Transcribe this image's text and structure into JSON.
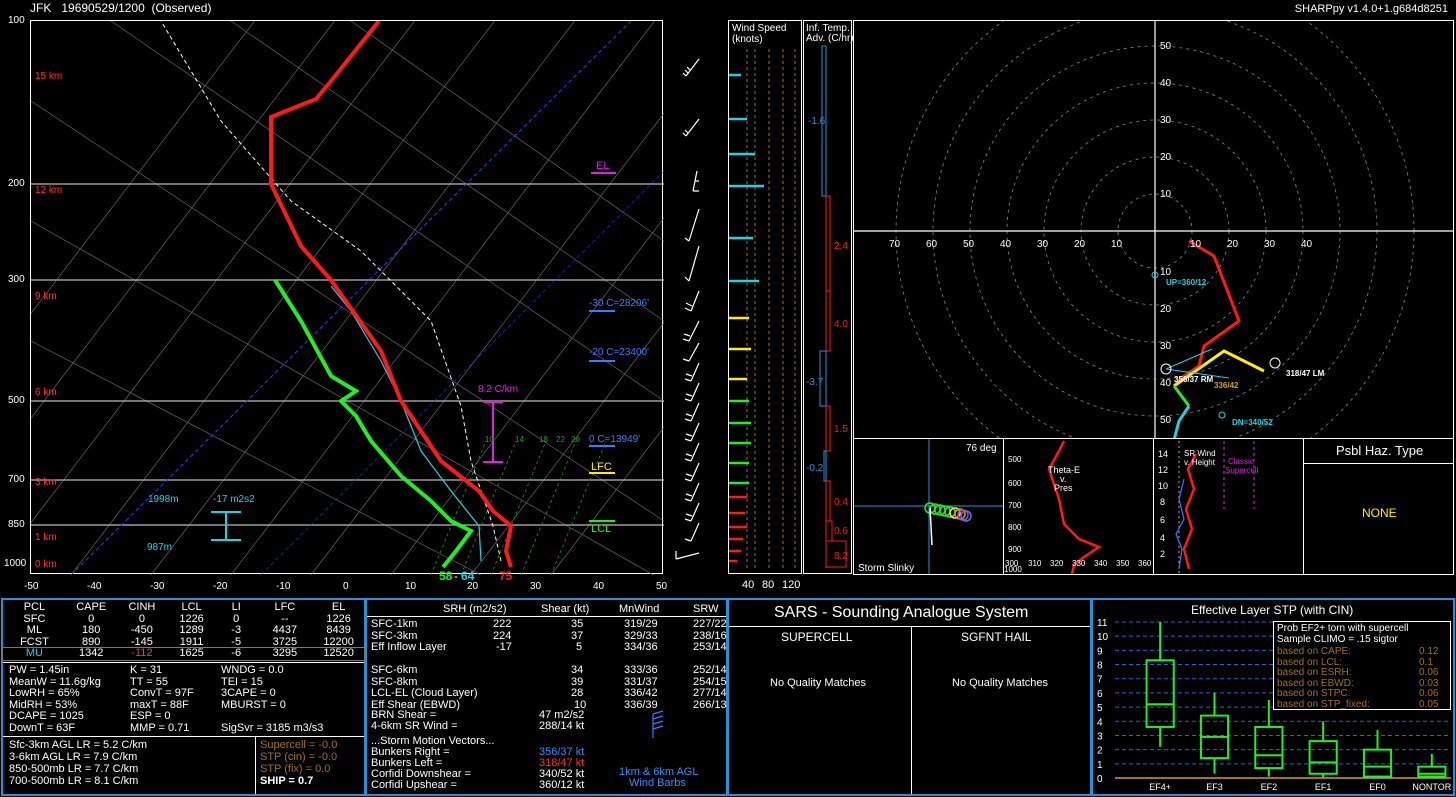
{
  "header": {
    "station": "JFK",
    "datetime": "19690529/1200",
    "status": "(Observed)",
    "version": "SHARPpy v1.4.0+1.g684d8251"
  },
  "skewt": {
    "pressure_labels": [
      "100",
      "200",
      "300",
      "500",
      "700",
      "850",
      "1000"
    ],
    "height_labels": [
      "15 km",
      "12 km",
      "9 km",
      "6 km",
      "3 km",
      "1 km",
      "0 km"
    ],
    "temp_labels": [
      "-50",
      "-40",
      "-30",
      "-20",
      "-10",
      "0",
      "10",
      "20",
      "30",
      "40",
      "50"
    ],
    "el_label": "EL",
    "lfc_label": "LFC",
    "lcl_label": "LCL",
    "isotherm_labels": [
      "-30 C=28206'",
      "-20 C=23400'",
      "0 C=13949'"
    ],
    "lapse_label": "8.2 C/km",
    "srh_top": "1998m",
    "srh_value": "-17 m2s2",
    "srh_bottom": "987m",
    "mixing_ratio_labels": [
      "10",
      "14",
      "18",
      "22",
      "26"
    ],
    "surface_dewpoint": "58",
    "surface_wetbulb": "64",
    "surface_temp": "75"
  },
  "wind_speed_panel": {
    "title": "Wind Speed",
    "units": "(knots)",
    "axis_labels": [
      "40",
      "80",
      "120"
    ]
  },
  "temp_adv_panel": {
    "title": "Inf. Temp.",
    "subtitle": "Adv. (C/hr)",
    "values": [
      "-1.6",
      "2.4",
      "4.0",
      "-3.7",
      "1.5",
      "-0.2",
      "0.4",
      "0.6",
      "8.2"
    ]
  },
  "hodograph": {
    "ring_labels_top": [
      "50",
      "40",
      "30",
      "20",
      "10"
    ],
    "ring_labels_left": [
      "70",
      "60",
      "50",
      "40",
      "30",
      "20",
      "10"
    ],
    "ring_labels_right": [
      "10",
      "20",
      "30",
      "40"
    ],
    "ring_labels_bottom": [
      "10",
      "20",
      "30",
      "40",
      "50"
    ],
    "upshear": "UP=360/12",
    "downshear": "DN=340/52",
    "rm": "356/37 RM",
    "lm": "318/47 LM",
    "mean": "336/42"
  },
  "storm_slinky": {
    "label": "Storm Slinky",
    "deg": "76 deg"
  },
  "theta_e": {
    "title_line1": "Theta-E",
    "title_line2": "v.",
    "title_line3": "Pres",
    "p_labels": [
      "500",
      "600",
      "700",
      "800",
      "900",
      "1000"
    ],
    "t_labels": [
      "300",
      "310",
      "320",
      "330",
      "340",
      "350",
      "360"
    ]
  },
  "srwind": {
    "title_line1": "SR Wind",
    "title_line2": "v. Height",
    "classic": "Classic",
    "supercell": "Supercell",
    "h_labels": [
      "14",
      "12",
      "10",
      "8",
      "6",
      "4",
      "2"
    ]
  },
  "hazard": {
    "title": "Psbl Haz. Type",
    "value": "NONE"
  },
  "parcels": {
    "headers": [
      "PCL",
      "CAPE",
      "CINH",
      "LCL",
      "LI",
      "LFC",
      "EL"
    ],
    "rows": [
      [
        "SFC",
        "0",
        "0",
        "1226",
        "0",
        "--",
        "1226"
      ],
      [
        "ML",
        "180",
        "-450",
        "1289",
        "-3",
        "4437",
        "8439"
      ],
      [
        "FCST",
        "890",
        "-145",
        "1911",
        "-5",
        "3725",
        "12200"
      ],
      [
        "MU",
        "1342",
        "-112",
        "1625",
        "-6",
        "3295",
        "12520"
      ]
    ]
  },
  "indices": {
    "col1": [
      "PW = 1.45in",
      "MeanW = 11.6g/kg",
      "LowRH = 65%",
      "MidRH = 53%",
      "DCAPE = 1025",
      "DownT = 63F"
    ],
    "col2": [
      "K = 31",
      "TT = 55",
      "ConvT = 97F",
      "maxT = 88F",
      "ESP = 0",
      "MMP = 0.71"
    ],
    "col3": [
      "WNDG = 0.0",
      "TEI = 15",
      "3CAPE = 0",
      "MBURST = 0",
      "",
      "SigSvr = 3185 m3/s3"
    ]
  },
  "lapse_rates": [
    "Sfc-3km AGL LR = 5.2 C/km",
    "3-6km AGL LR = 7.9 C/km",
    "850-500mb LR = 7.7 C/km",
    "700-500mb LR = 8.1 C/km"
  ],
  "composites": [
    "Supercell = -0.0",
    "STP (cin) = -0.0",
    "STP (fix) = 0.0",
    "SHIP = 0.7"
  ],
  "kinematics": {
    "headers": [
      "SRH (m2/s2)",
      "Shear (kt)",
      "MnWind",
      "SRW"
    ],
    "rows": [
      [
        "SFC-1km",
        "222",
        "35",
        "319/29",
        "227/22"
      ],
      [
        "SFC-3km",
        "224",
        "37",
        "329/33",
        "238/16"
      ],
      [
        "Eff Inflow Layer",
        "-17",
        "5",
        "334/36",
        "253/14"
      ],
      [
        "",
        "",
        "",
        "",
        ""
      ],
      [
        "SFC-6km",
        "",
        "34",
        "333/36",
        "252/14"
      ],
      [
        "SFC-8km",
        "",
        "39",
        "331/37",
        "254/15"
      ],
      [
        "LCL-EL (Cloud Layer)",
        "",
        "28",
        "336/42",
        "277/14"
      ],
      [
        "Eff Shear (EBWD)",
        "",
        "10",
        "336/39",
        "266/13"
      ]
    ],
    "brn_label": "BRN Shear =",
    "brn_value": "47 m2/s2",
    "sr46_label": "4-6km SR Wind =",
    "sr46_value": "288/14 kt",
    "storm_motion_title": "...Storm Motion Vectors...",
    "bunkers_right_label": "Bunkers Right =",
    "bunkers_right_value": "356/37 kt",
    "bunkers_left_label": "Bunkers Left =",
    "bunkers_left_value": "318/47 kt",
    "corfidi_down_label": "Corfidi Downshear =",
    "corfidi_down_value": "340/52 kt",
    "corfidi_up_label": "Corfidi Upshear =",
    "corfidi_up_value": "360/12 kt",
    "barbs_line1": "1km & 6km AGL",
    "barbs_line2": "Wind Barbs"
  },
  "sars": {
    "title": "SARS - Sounding Analogue System",
    "supercell_title": "SUPERCELL",
    "hail_title": "SGFNT HAIL",
    "supercell_result": "No Quality Matches",
    "hail_result": "No Quality Matches"
  },
  "stp": {
    "title": "Effective Layer STP (with CIN)",
    "legend_title1": "Prob EF2+ torn with supercell",
    "legend_title2": "Sample CLIMO = .15 sigtor",
    "legend_rows": [
      [
        "based on CAPE:",
        "0.12"
      ],
      [
        "based on LCL:",
        "0.1"
      ],
      [
        "based on ESRH:",
        "0.06"
      ],
      [
        "based on EBWD:",
        "0.03"
      ],
      [
        "based on STPC:",
        "0.06"
      ],
      [
        "based on STP_fixed:",
        "0.05"
      ]
    ],
    "y_labels": [
      "11",
      "10",
      "9",
      "8",
      "7",
      "6",
      "5",
      "4",
      "3",
      "2",
      "1",
      "0"
    ],
    "categories": [
      "EF4+",
      "EF3",
      "EF2",
      "EF1",
      "EF0",
      "NONTOR"
    ]
  },
  "colors": {
    "temperature": "#ff1a1a",
    "dewpoint": "#22ee22",
    "wetbulb": "#22d0e0",
    "border": "#2b8fd6",
    "accent_blue": "#3b7bff",
    "magenta": "#e020e0",
    "yellow": "#ffee00"
  }
}
